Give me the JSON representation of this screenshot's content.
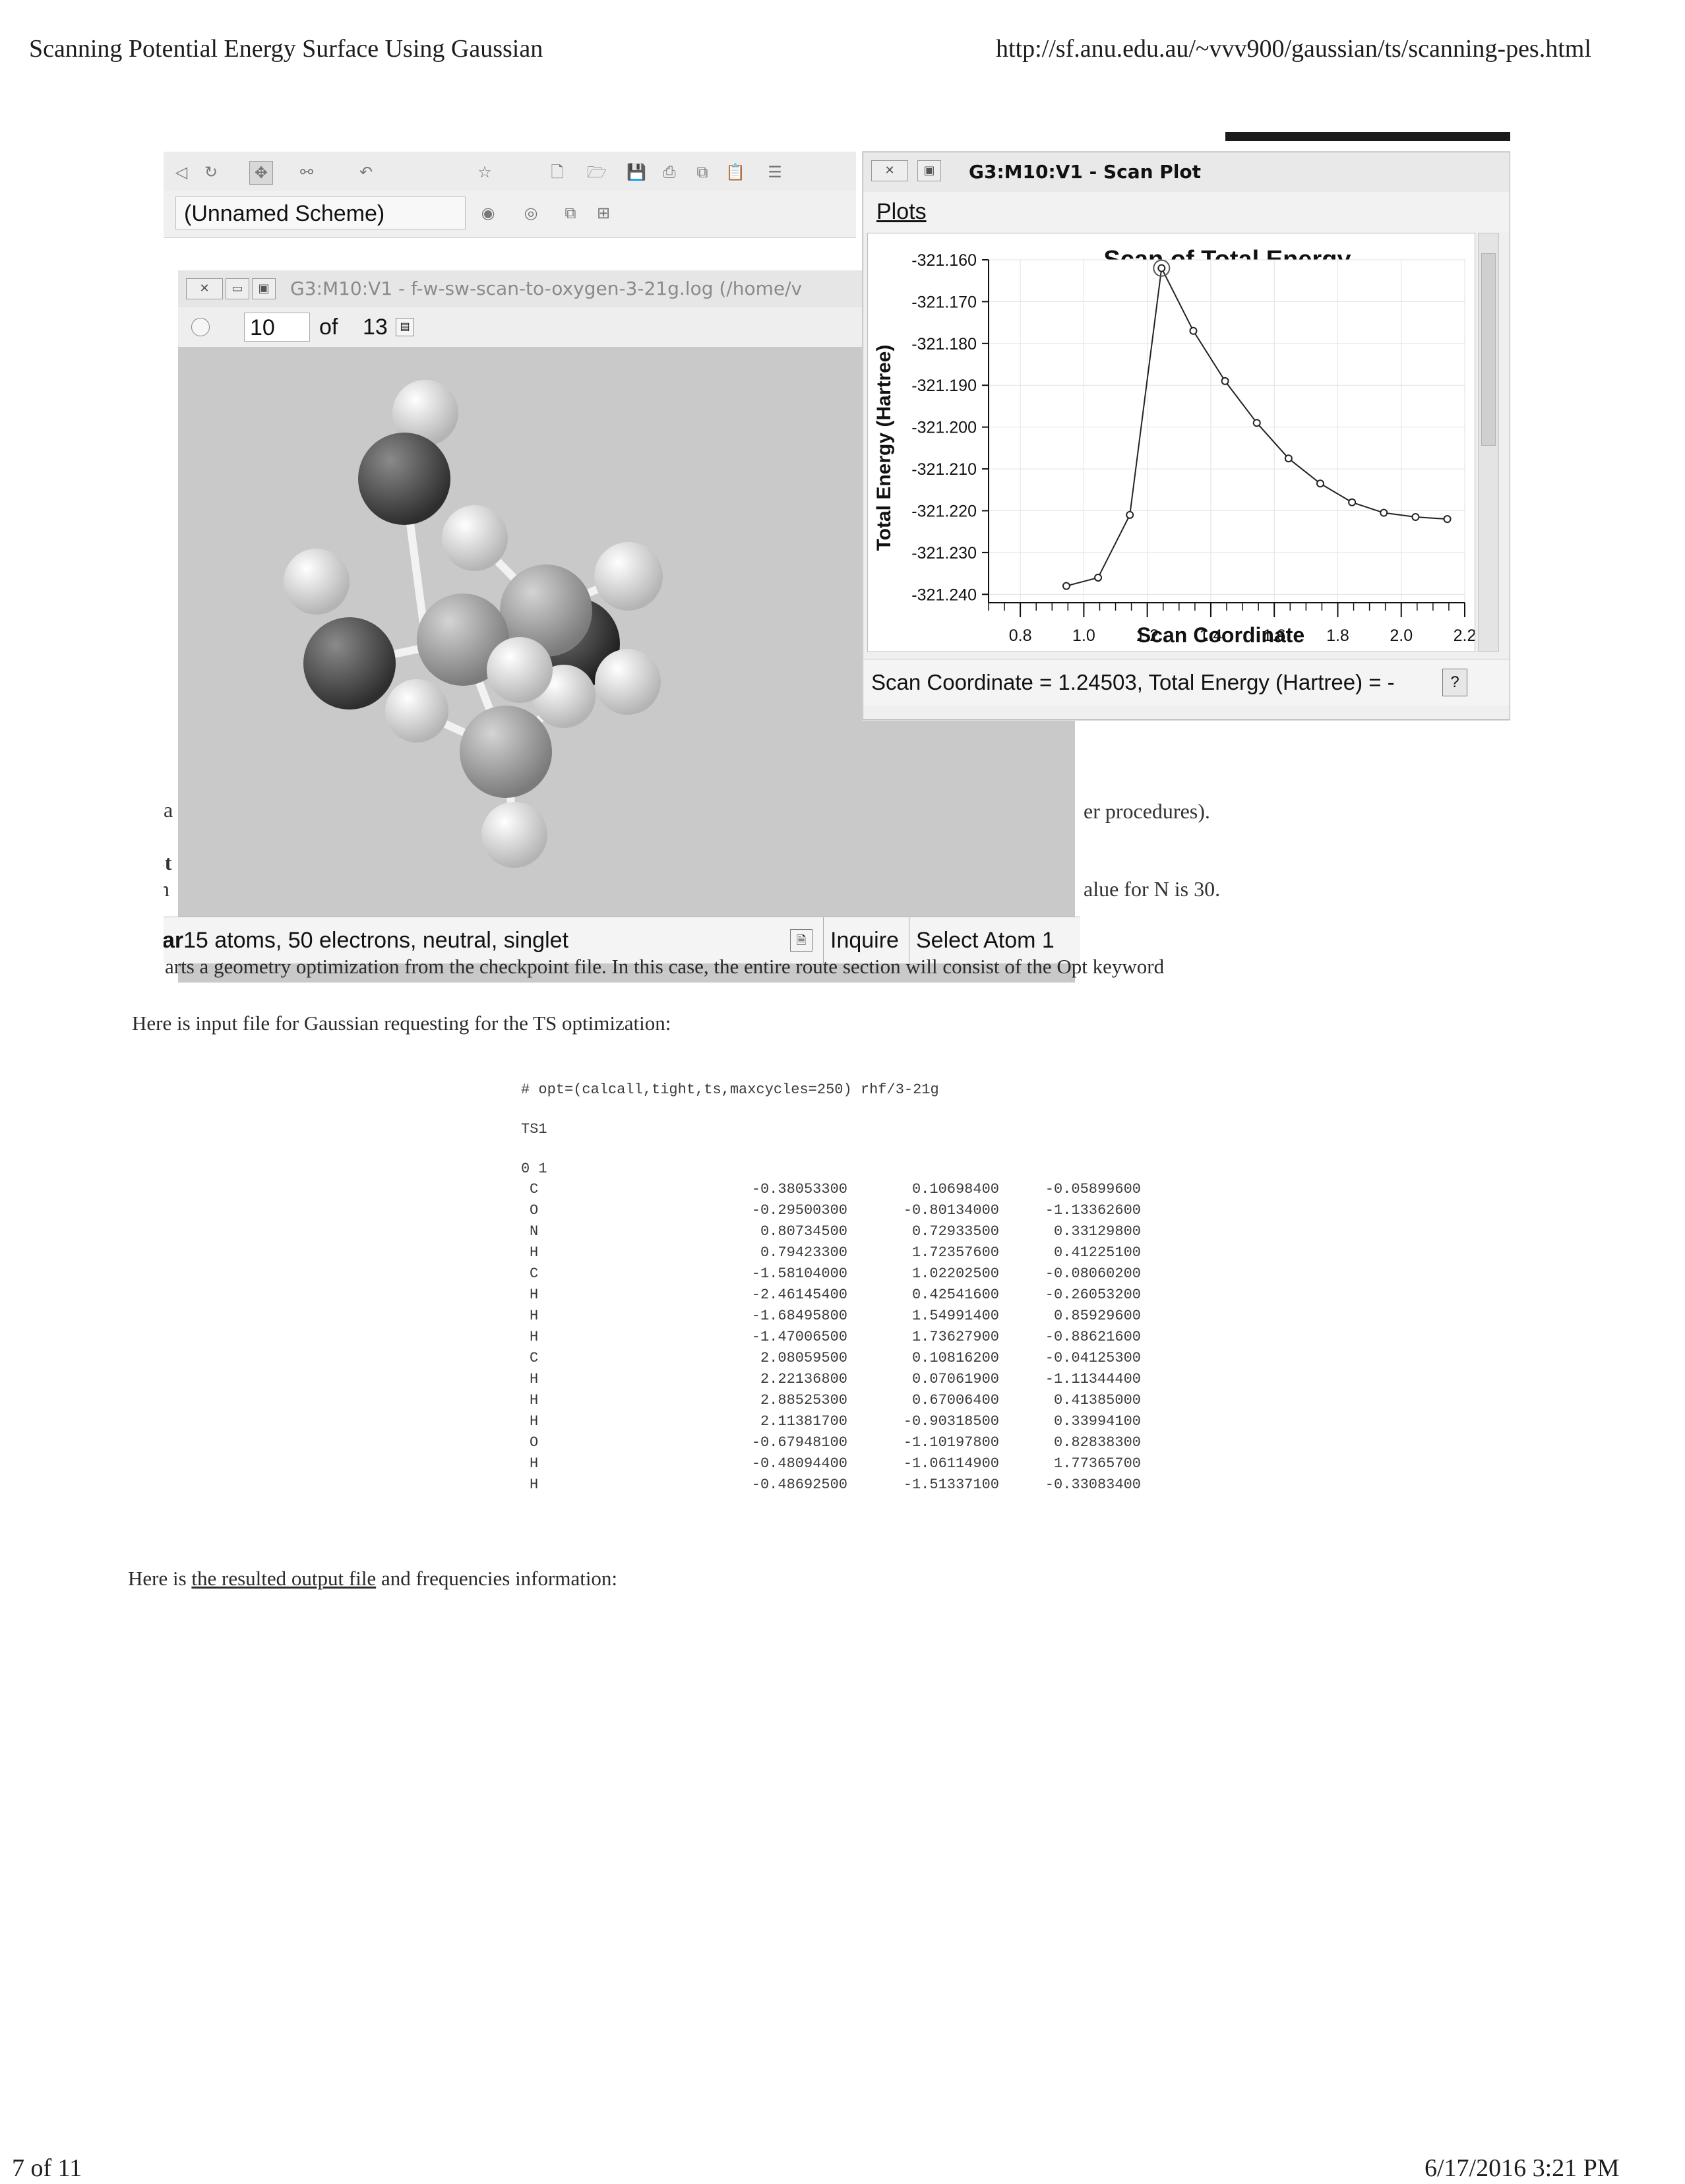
{
  "print_header": {
    "title": "Scanning Potential Energy Surface Using Gaussian",
    "url": "http://sf.anu.edu.au/~vvv900/gaussian/ts/scanning-pes.html"
  },
  "print_footer": {
    "page": "7 of 11",
    "datetime": "6/17/2016 3:21 PM"
  },
  "gaussview": {
    "scheme": "(Unnamed Scheme)",
    "mol_window": {
      "title": "G3:M10:V1 - f-w-sw-scan-to-oxygen-3-21g.log (/home/v",
      "frame_value": "10",
      "frame_of": "of",
      "frame_total": "13",
      "status": "15 atoms, 50 electrons, neutral, singlet",
      "status_prefix": "ar",
      "inquire": "Inquire",
      "select_atom": "Select Atom 1"
    },
    "scan_window": {
      "title": "G3:M10:V1 - Scan Plot",
      "menu_plots": "Plots",
      "status": "Scan Coordinate = 1.24503, Total Energy (Hartree) = -",
      "help": "?"
    },
    "behind_fragments": {
      "left1": "na",
      "left2": "St",
      "left3": "th",
      "right1": "er procedures).",
      "right2": "alue for N is 30."
    }
  },
  "chart_data": {
    "type": "line",
    "title": "Scan of Total Energy",
    "xlabel": "Scan Coordinate",
    "ylabel": "Total Energy (Hartree)",
    "xlim": [
      0.7,
      2.2
    ],
    "ylim": [
      -321.242,
      -321.16
    ],
    "xticks": [
      "0.8",
      "1.0",
      "1.2",
      "1.4",
      "1.6",
      "1.8",
      "2.0",
      "2.2"
    ],
    "yticks": [
      "-321.160",
      "-321.170",
      "-321.180",
      "-321.190",
      "-321.200",
      "-321.210",
      "-321.220",
      "-321.230",
      "-321.240"
    ],
    "grid": true,
    "series": [
      {
        "x": [
          0.945,
          1.045,
          1.145,
          1.245,
          1.345,
          1.445,
          1.545,
          1.645,
          1.745,
          1.845,
          1.945,
          2.045,
          2.145
        ],
        "y": [
          -321.238,
          -321.236,
          -321.221,
          -321.162,
          -321.177,
          -321.189,
          -321.199,
          -321.2075,
          -321.2135,
          -321.218,
          -321.2205,
          -321.2215,
          -321.222
        ]
      }
    ],
    "highlight_index": 3
  },
  "doc": {
    "line_after_shot": "arts a geometry optimization from the checkpoint file. In this case, the entire route section will consist of the Opt keyword",
    "input_intro": "Here is input file for Gaussian requesting for the TS optimization:",
    "route": "# opt=(calcall,tight,ts,maxcycles=250) rhf/3-21g",
    "job_title": "TS1",
    "charge_mult": "0 1",
    "atoms": [
      {
        "el": "C",
        "x": "-0.38053300",
        "y": "0.10698400",
        "z": "-0.05899600"
      },
      {
        "el": "O",
        "x": "-0.29500300",
        "y": "-0.80134000",
        "z": "-1.13362600"
      },
      {
        "el": "N",
        "x": "0.80734500",
        "y": "0.72933500",
        "z": "0.33129800"
      },
      {
        "el": "H",
        "x": "0.79423300",
        "y": "1.72357600",
        "z": "0.41225100"
      },
      {
        "el": "C",
        "x": "-1.58104000",
        "y": "1.02202500",
        "z": "-0.08060200"
      },
      {
        "el": "H",
        "x": "-2.46145400",
        "y": "0.42541600",
        "z": "-0.26053200"
      },
      {
        "el": "H",
        "x": "-1.68495800",
        "y": "1.54991400",
        "z": "0.85929600"
      },
      {
        "el": "H",
        "x": "-1.47006500",
        "y": "1.73627900",
        "z": "-0.88621600"
      },
      {
        "el": "C",
        "x": "2.08059500",
        "y": "0.10816200",
        "z": "-0.04125300"
      },
      {
        "el": "H",
        "x": "2.22136800",
        "y": "0.07061900",
        "z": "-1.11344400"
      },
      {
        "el": "H",
        "x": "2.88525300",
        "y": "0.67006400",
        "z": "0.41385000"
      },
      {
        "el": "H",
        "x": "2.11381700",
        "y": "-0.90318500",
        "z": "0.33994100"
      },
      {
        "el": "O",
        "x": "-0.67948100",
        "y": "-1.10197800",
        "z": "0.82838300"
      },
      {
        "el": "H",
        "x": "-0.48094400",
        "y": "-1.06114900",
        "z": "1.77365700"
      },
      {
        "el": "H",
        "x": "-0.48692500",
        "y": "-1.51337100",
        "z": "-0.33083400"
      }
    ],
    "output_intro_pre": "Here is ",
    "output_link": "the resulted output file",
    "output_intro_post": " and frequencies information:"
  }
}
